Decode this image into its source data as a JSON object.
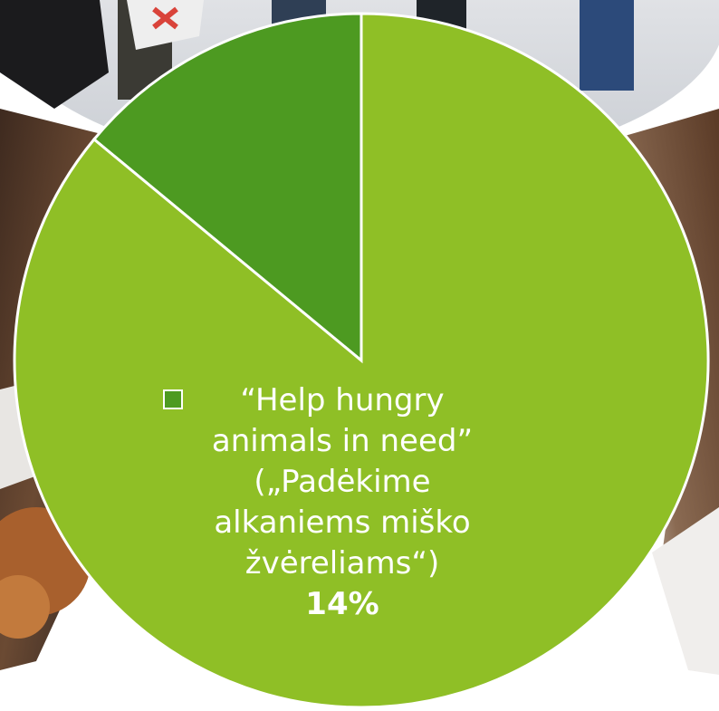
{
  "chart_data": {
    "type": "pie",
    "categories": [
      "“Help hungry animals in need” („Padėkime alkaniems miško žvėreliams“)",
      ""
    ],
    "values": [
      14,
      86
    ],
    "colors": [
      "#4d9a21",
      "#8fbf26"
    ],
    "title": "",
    "data_labels": [
      {
        "text": "“Help hungry\nanimals in need”\n(„Padėkime\nalkaniems miško\nžvėreliams“)",
        "value": "14%"
      }
    ],
    "legend_marker_color": "#4d9a21",
    "slice_border_color": "#ffffff",
    "background": "photo collage of volunteers, snow and forest"
  }
}
